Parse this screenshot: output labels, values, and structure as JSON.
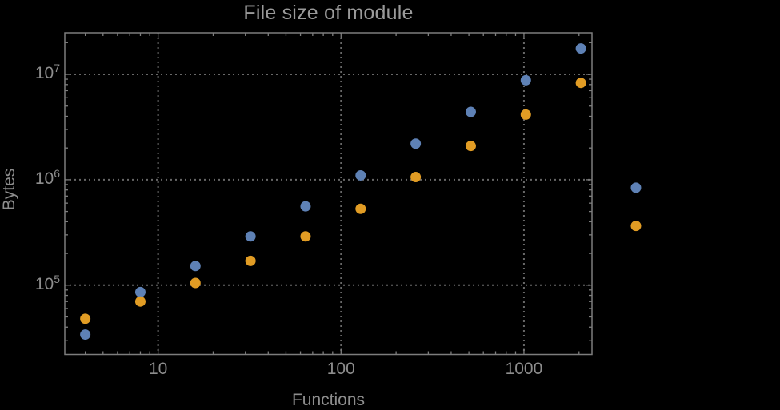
{
  "window": {
    "background_color": "#000000"
  },
  "chart_data": {
    "type": "scatter",
    "title": "File size of module",
    "xlabel": "Functions",
    "ylabel": "Bytes",
    "x_scale": "log",
    "y_scale": "log",
    "xlim": [
      3.09,
      2355
    ],
    "ylim": [
      22000,
      24800000
    ],
    "x_major_ticks": [
      10,
      100,
      1000
    ],
    "x_tick_labels": [
      "10",
      "100",
      "1000"
    ],
    "y_major_ticks": [
      100000,
      1000000,
      10000000
    ],
    "y_tick_base": "10",
    "y_tick_exponents": [
      "5",
      "6",
      "7"
    ],
    "grid": "dotted-major-both-axes",
    "legend": "none",
    "plot_range_clipping": false,
    "x": [
      4,
      8,
      16,
      32,
      64,
      128,
      256,
      512,
      1024,
      2048,
      4096
    ],
    "series": [
      {
        "name": "series-1-blue",
        "color": "#5e81b5",
        "values": [
          34000,
          86000,
          152000,
          290000,
          560000,
          1100000,
          2200000,
          4400000,
          8800000,
          17600000,
          840000
        ]
      },
      {
        "name": "series-2-orange",
        "color": "#e19c24",
        "values": [
          48000,
          70000,
          105000,
          170000,
          290000,
          530000,
          1060000,
          2090000,
          4150000,
          8300000,
          365000
        ]
      }
    ],
    "marker": {
      "shape": "circle",
      "radius_px": 6.5
    },
    "colors": {
      "frame": "#7d7d7d",
      "grid": "#686868",
      "text": "#8d8d8d",
      "title_text": "#9a9a9a"
    }
  }
}
